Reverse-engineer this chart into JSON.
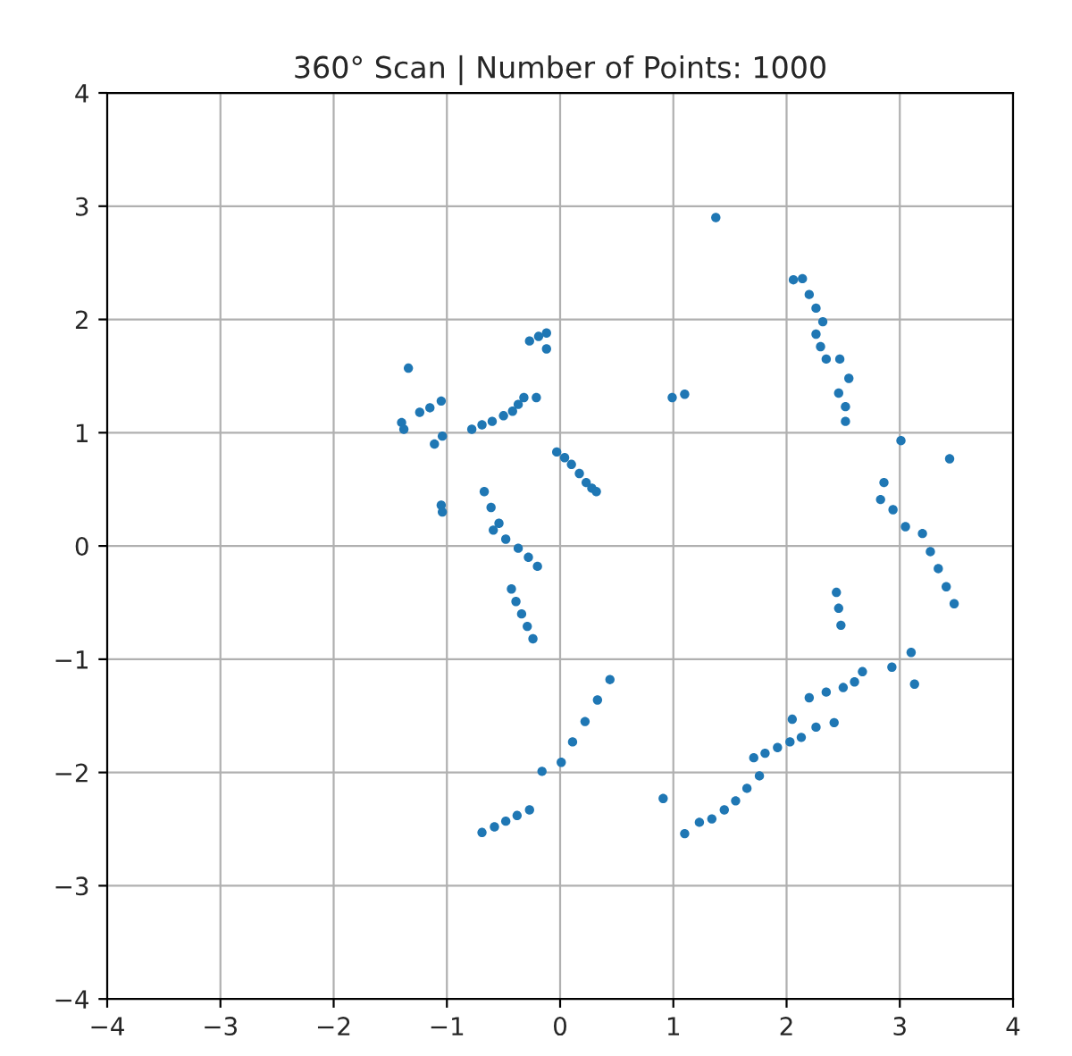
{
  "chart_data": {
    "type": "scatter",
    "title": "360° Scan | Number of Points: 1000",
    "x": [
      -1.34,
      -1.4,
      -1.38,
      -1.24,
      -1.15,
      -1.05,
      -1.11,
      -1.04,
      -1.05,
      -1.04,
      -0.78,
      -0.69,
      -0.6,
      -0.5,
      -0.42,
      -0.37,
      -0.32,
      -0.21,
      -0.27,
      -0.19,
      -0.12,
      -0.12,
      -0.03,
      0.04,
      0.1,
      0.17,
      0.23,
      0.28,
      0.32,
      -0.67,
      -0.61,
      -0.54,
      -0.59,
      -0.48,
      -0.37,
      -0.28,
      -0.2,
      -0.43,
      -0.39,
      -0.34,
      -0.29,
      -0.24,
      1.375,
      0.99,
      1.1,
      2.06,
      2.14,
      2.2,
      2.26,
      2.32,
      2.26,
      2.3,
      2.35,
      2.47,
      2.55,
      2.46,
      2.52,
      2.52,
      3.01,
      3.44,
      2.86,
      2.83,
      2.94,
      3.05,
      3.2,
      3.27,
      3.34,
      3.41,
      3.48,
      2.44,
      2.46,
      2.48,
      2.93,
      3.1,
      3.13,
      2.2,
      2.35,
      2.5,
      2.6,
      2.67,
      2.26,
      2.42,
      2.05,
      1.71,
      1.81,
      1.92,
      2.03,
      2.13,
      1.1,
      1.23,
      1.34,
      1.45,
      1.55,
      1.65,
      1.76,
      0.91,
      -0.69,
      -0.58,
      -0.48,
      -0.38,
      -0.27,
      -0.16,
      0.01,
      0.11,
      0.22,
      0.33,
      0.44
    ],
    "values": [
      1.57,
      1.09,
      1.03,
      1.18,
      1.22,
      1.28,
      0.9,
      0.97,
      0.36,
      0.3,
      1.03,
      1.07,
      1.1,
      1.15,
      1.19,
      1.25,
      1.31,
      1.31,
      1.81,
      1.85,
      1.88,
      1.74,
      0.83,
      0.78,
      0.72,
      0.64,
      0.56,
      0.51,
      0.48,
      0.48,
      0.34,
      0.2,
      0.14,
      0.06,
      -0.02,
      -0.1,
      -0.18,
      -0.38,
      -0.49,
      -0.6,
      -0.71,
      -0.82,
      2.9,
      1.31,
      1.34,
      2.35,
      2.36,
      2.22,
      2.1,
      1.98,
      1.87,
      1.76,
      1.65,
      1.65,
      1.48,
      1.35,
      1.23,
      1.1,
      0.93,
      0.77,
      0.56,
      0.41,
      0.32,
      0.17,
      0.11,
      -0.05,
      -0.2,
      -0.36,
      -0.51,
      -0.41,
      -0.55,
      -0.7,
      -1.07,
      -0.94,
      -1.22,
      -1.34,
      -1.29,
      -1.25,
      -1.2,
      -1.11,
      -1.6,
      -1.56,
      -1.53,
      -1.87,
      -1.83,
      -1.78,
      -1.73,
      -1.69,
      -2.54,
      -2.44,
      -2.41,
      -2.33,
      -2.25,
      -2.14,
      -2.03,
      -2.23,
      -2.53,
      -2.48,
      -2.43,
      -2.38,
      -2.33,
      -1.99,
      -1.91,
      -1.73,
      -1.55,
      -1.36,
      -1.18
    ],
    "color": "#1f77b4",
    "marker": "circle",
    "xlim": [
      -4,
      4
    ],
    "ylim": [
      -4,
      4
    ],
    "xticks": [
      {
        "value": -4,
        "label": "−4"
      },
      {
        "value": -3,
        "label": "−3"
      },
      {
        "value": -2,
        "label": "−2"
      },
      {
        "value": -1,
        "label": "−1"
      },
      0,
      1,
      2,
      3,
      4
    ],
    "yticks": [
      {
        "value": -4,
        "label": "−4"
      },
      {
        "value": -3,
        "label": "−3"
      },
      {
        "value": -2,
        "label": "−2"
      },
      {
        "value": -1,
        "label": "−1"
      },
      0,
      1,
      2,
      3,
      4
    ],
    "grid": true
  }
}
